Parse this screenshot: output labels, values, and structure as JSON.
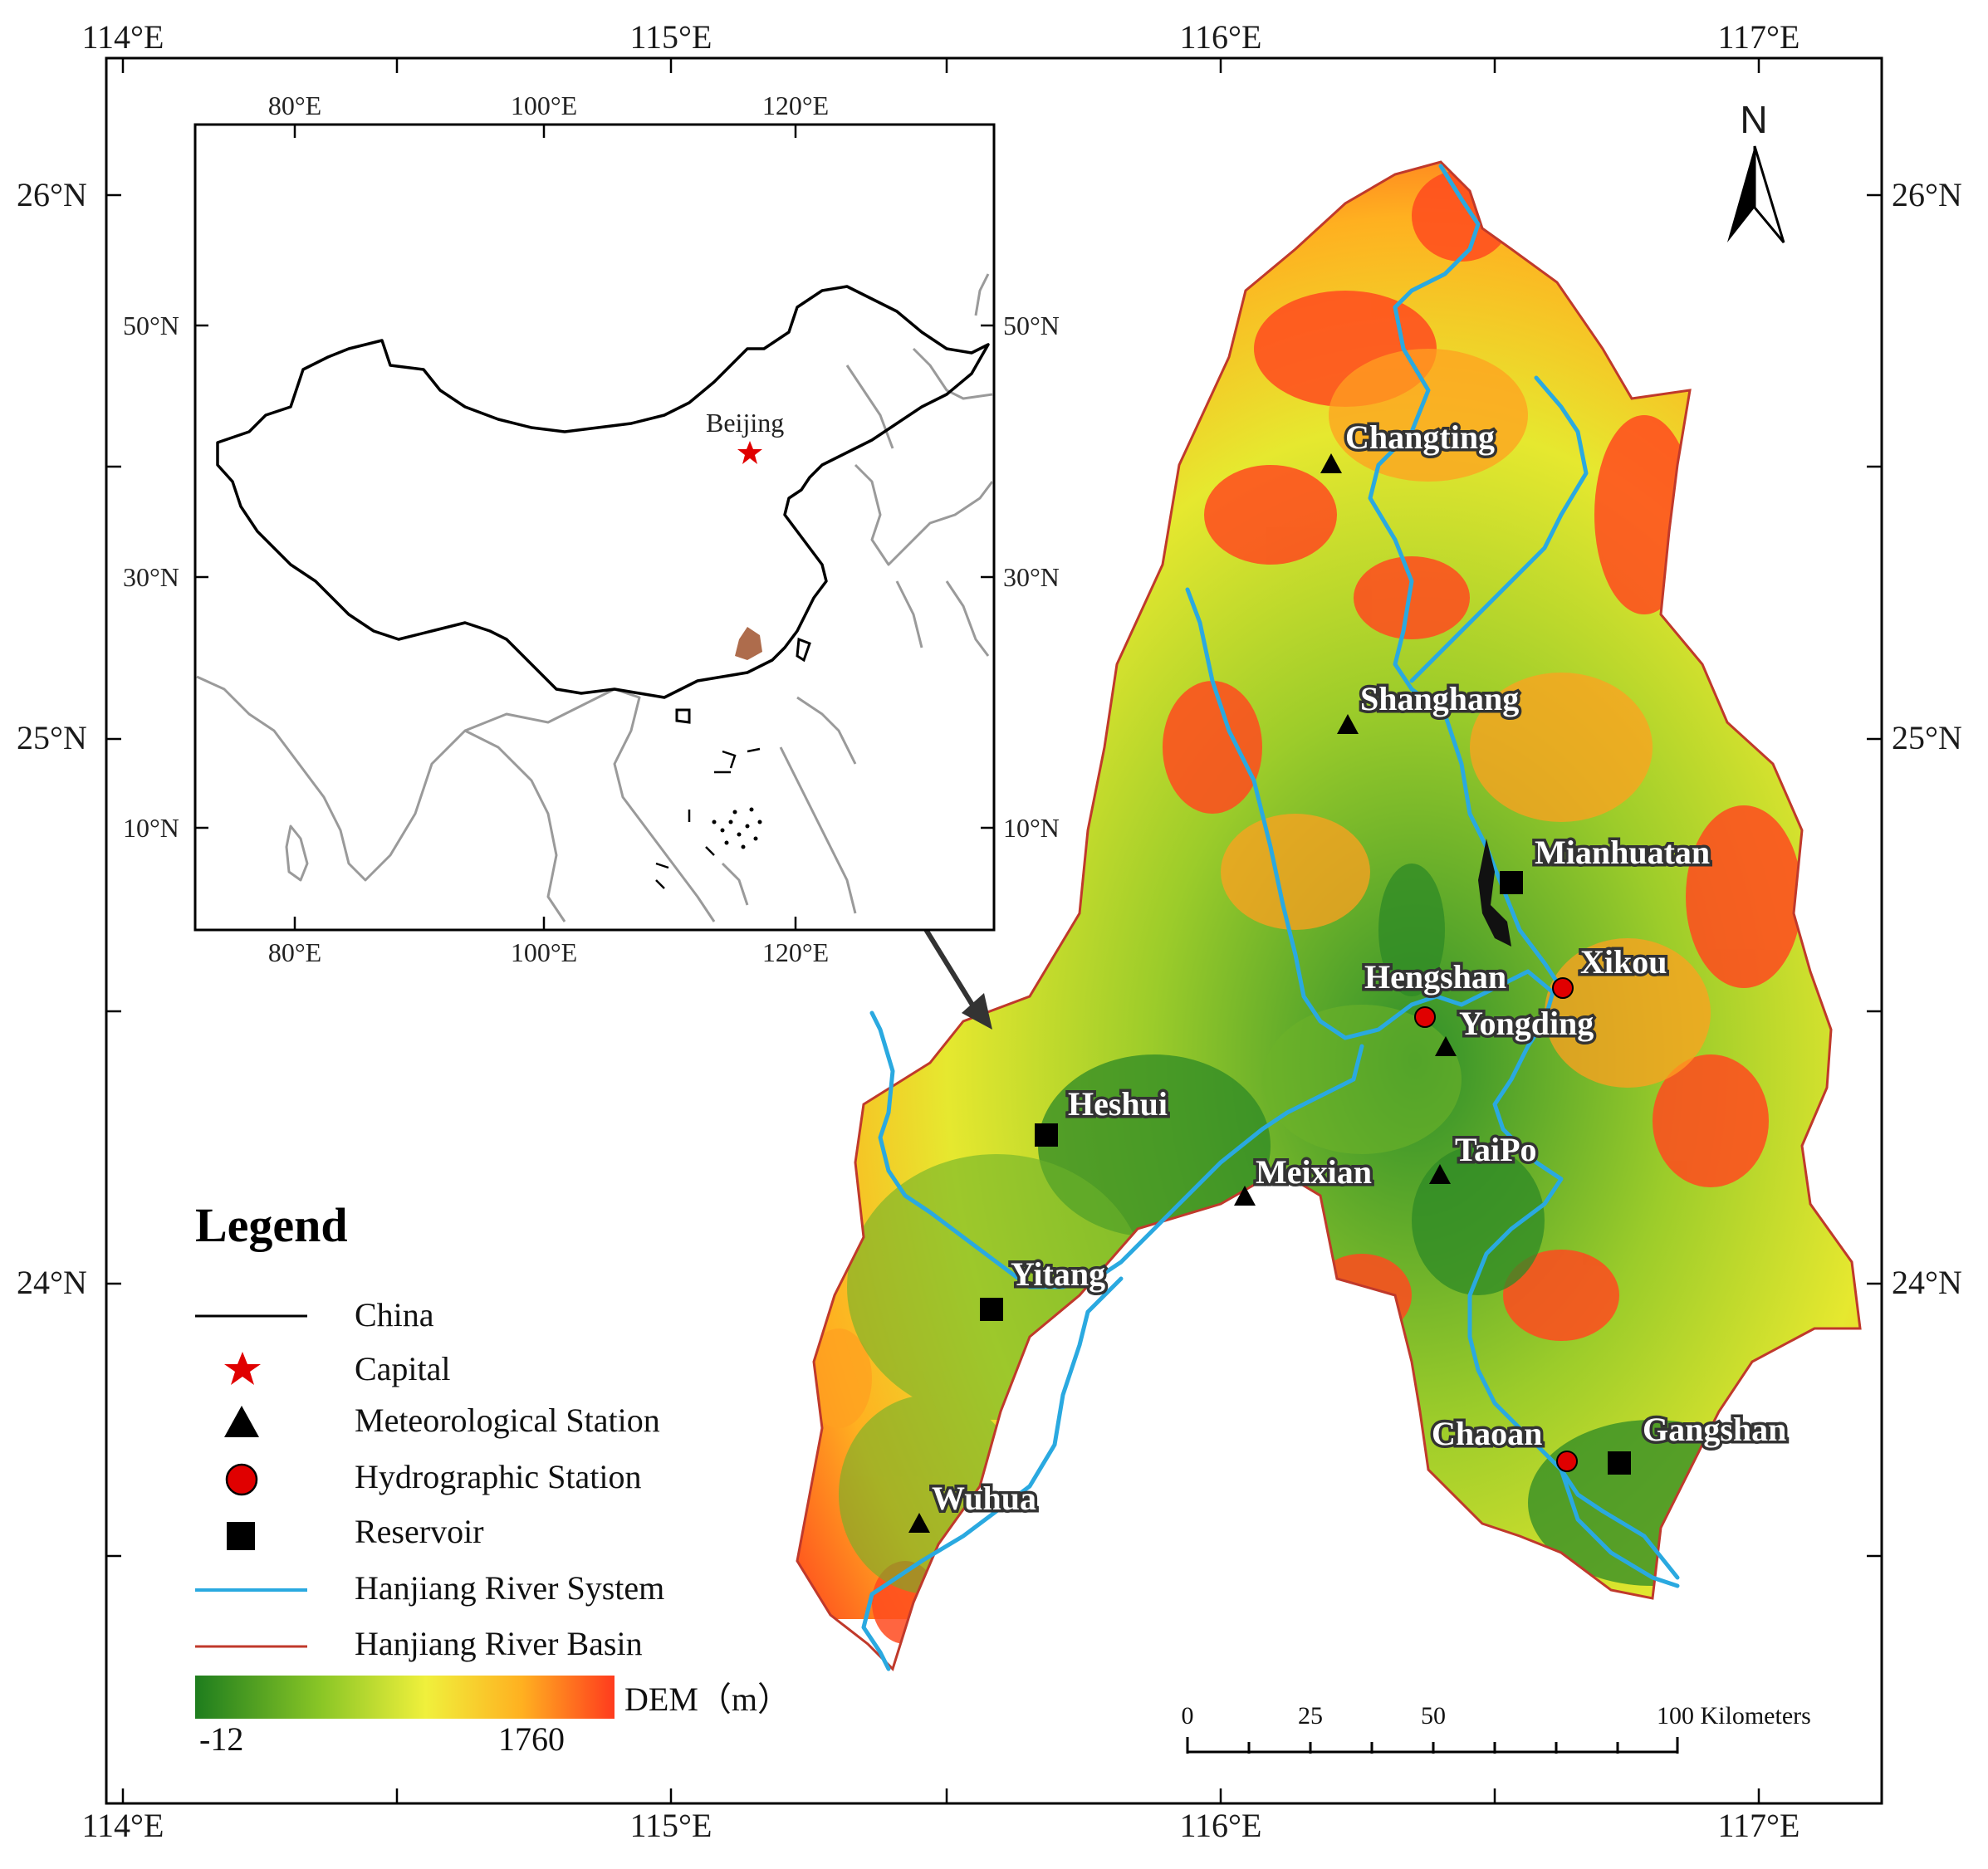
{
  "frame": {
    "lon_labels": [
      "114°E",
      "115°E",
      "116°E",
      "117°E"
    ],
    "lat_labels": [
      "26°N",
      "25°N",
      "24°N"
    ]
  },
  "inset": {
    "lon_labels": [
      "80°E",
      "100°E",
      "120°E"
    ],
    "lat_labels": [
      "50°N",
      "30°N",
      "10°N"
    ],
    "capital_label": "Beijing"
  },
  "places": {
    "changting": "Changting",
    "shanghang": "Shanghang",
    "mianhuatan": "Mianhuatan",
    "hengshan": "Hengshan",
    "xikou": "Xikou",
    "yongding": "Yongding",
    "heshui": "Heshui",
    "meixian": "Meixian",
    "taipo": "TaiPo",
    "yitang": "Yitang",
    "wuhua": "Wuhua",
    "chaoan": "Chaoan",
    "gangshan": "Gangshan"
  },
  "legend": {
    "title": "Legend",
    "items": {
      "china": "China",
      "capital": "Capital",
      "meteorological": "Meteorological Station",
      "hydrographic": "Hydrographic Station",
      "reservoir": "Reservoir",
      "river_system": "Hanjiang River System",
      "river_basin": "Hanjiang River Basin"
    },
    "dem_label": "DEM（m）",
    "dem_min": "-12",
    "dem_max": "1760"
  },
  "scale_bar": {
    "labels": [
      "0",
      "25",
      "50",
      "100 Kilometers"
    ]
  },
  "north_label": "N",
  "colors": {
    "river": "#2aa9e0",
    "basin_outline": "#c0392b",
    "capital": "#e00000",
    "hydro_station": "#e00000",
    "dem_low": "#1e7d1e",
    "dem_mid": "#f0f03c",
    "dem_high": "#ff3b1e"
  }
}
